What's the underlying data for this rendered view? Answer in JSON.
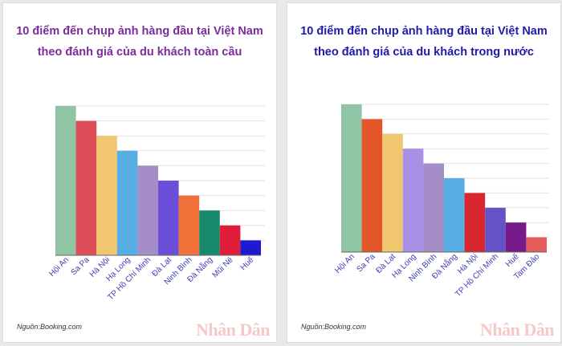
{
  "colors": {
    "title_left": "#7b2c9c",
    "title_right": "#1f1aa8",
    "grid": "#e2e2e2",
    "axis": "#666666",
    "label": "#3b3bb3",
    "wordmark": "#f6c9c9"
  },
  "panels": [
    {
      "title_line1": "10 điểm đến chụp ảnh hàng đầu tại Việt Nam",
      "title_line2": "theo đánh giá của du khách toàn cầu",
      "source": "Nguồn:Booking.com",
      "logo_text": "Nhân Dân"
    },
    {
      "title_line1": "10 điểm đến chụp ảnh hàng đầu tại Việt Nam",
      "title_line2": "theo đánh giá của du khách trong nước",
      "source": "Nguồn:Booking.com",
      "logo_text": "Nhân Dân"
    }
  ],
  "chart_data": [
    {
      "type": "bar",
      "title": "10 điểm đến chụp ảnh hàng đầu tại Việt Nam theo đánh giá của du khách toàn cầu",
      "categories": [
        "Hội An",
        "Sa Pa",
        "Hà Nội",
        "Hạ Long",
        "TP Hồ Chí Minh",
        "Đà Lạt",
        "Ninh Bình",
        "Đà Nẵng",
        "Mũi Né",
        "Huế"
      ],
      "values": [
        10,
        9,
        8,
        7,
        6,
        5,
        4,
        3,
        2,
        1
      ],
      "colors": [
        "#8fc4a5",
        "#dd4c57",
        "#f0c66e",
        "#56aee2",
        "#a58ec8",
        "#6b4fd8",
        "#f2703a",
        "#178a6e",
        "#e01e3c",
        "#1f1ad2"
      ],
      "ylim": [
        0,
        10
      ],
      "grid": true,
      "yaxis_labels": false,
      "legend": "none"
    },
    {
      "type": "bar",
      "title": "10 điểm đến chụp ảnh hàng đầu tại Việt Nam theo đánh giá của du khách trong nước",
      "categories": [
        "Hội An",
        "Sa Pa",
        "Đà Lạt",
        "Hạ Long",
        "Ninh Bình",
        "Đà Nẵng",
        "Hà Nội",
        "TP Hồ Chí Minh",
        "Huế",
        "Tam Đảo"
      ],
      "values": [
        10,
        9,
        8,
        7,
        6,
        5,
        4,
        3,
        2,
        1
      ],
      "colors": [
        "#8fc4a5",
        "#e2562a",
        "#f0c66e",
        "#a98fe6",
        "#a58ec8",
        "#56aee2",
        "#d7262d",
        "#6353c4",
        "#77198a",
        "#e35b5b"
      ],
      "ylim": [
        0,
        10
      ],
      "grid": true,
      "yaxis_labels": false,
      "legend": "none"
    }
  ]
}
